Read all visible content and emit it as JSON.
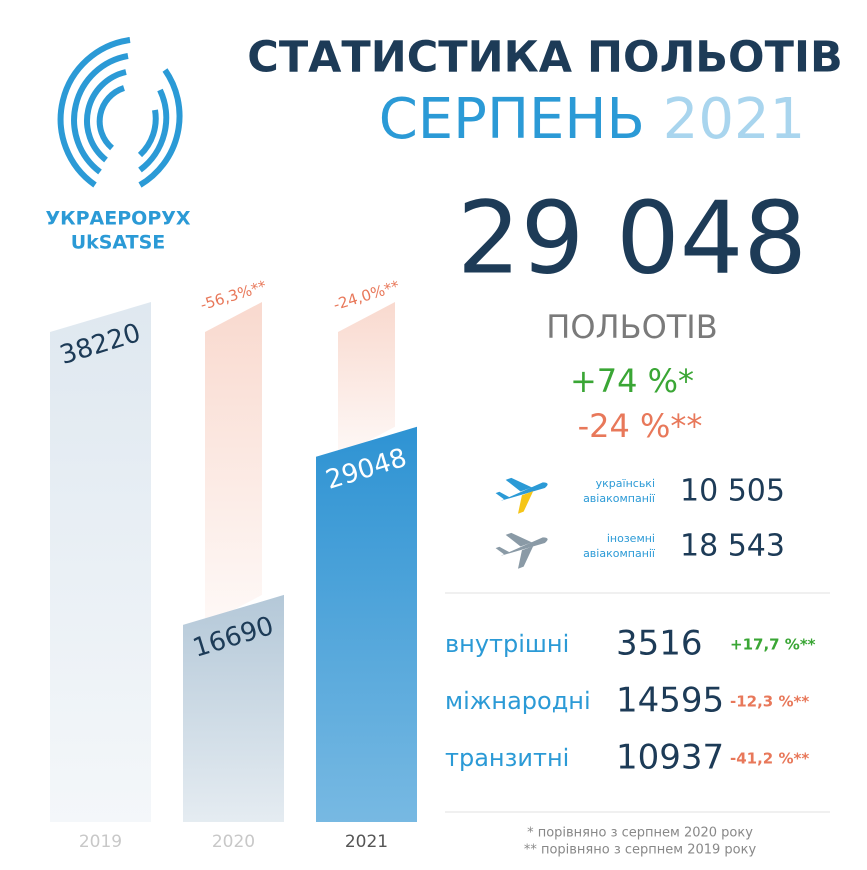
{
  "logo": {
    "name": "УКРАЕРОРУХ",
    "abbr": "UkSATSE"
  },
  "header": {
    "title": "СТАТИСТИКА ПОЛЬОТІВ",
    "month": "СЕРПЕНЬ",
    "year": "2021"
  },
  "total": {
    "number": "29 048",
    "unit": "ПОЛЬОТІВ",
    "change_1": "+74 %*",
    "change_2": "-24 %**"
  },
  "airlines": [
    {
      "label_1": "українські",
      "label_2": "авіакомпанії",
      "count": "10 505"
    },
    {
      "label_1": "іноземні",
      "label_2": "авіакомпанії",
      "count": "18 543"
    }
  ],
  "breakdown": [
    {
      "name": "внутрішні",
      "count": "3516",
      "change": "+17,7 %**",
      "color": "#3aa635"
    },
    {
      "name": "міжнародні",
      "count": "14595",
      "change": "-12,3 %**",
      "color": "#e8785a"
    },
    {
      "name": "транзитні",
      "count": "10937",
      "change": "-41,2 %**",
      "color": "#e8785a"
    }
  ],
  "footnotes": [
    "* порівняно з серпнем 2020 року",
    "** порівняно з серпнем 2019 року"
  ],
  "chart_data": {
    "type": "bar",
    "categories": [
      "2019",
      "2020",
      "2021"
    ],
    "values": [
      38220,
      16690,
      29048
    ],
    "colors": [
      "#dfe8f0",
      "#b4c8d8",
      "#2e93d3"
    ],
    "reference_color": "#f8d5c9",
    "change_labels": [
      null,
      "-56,3%**",
      "-24,0%**"
    ]
  }
}
